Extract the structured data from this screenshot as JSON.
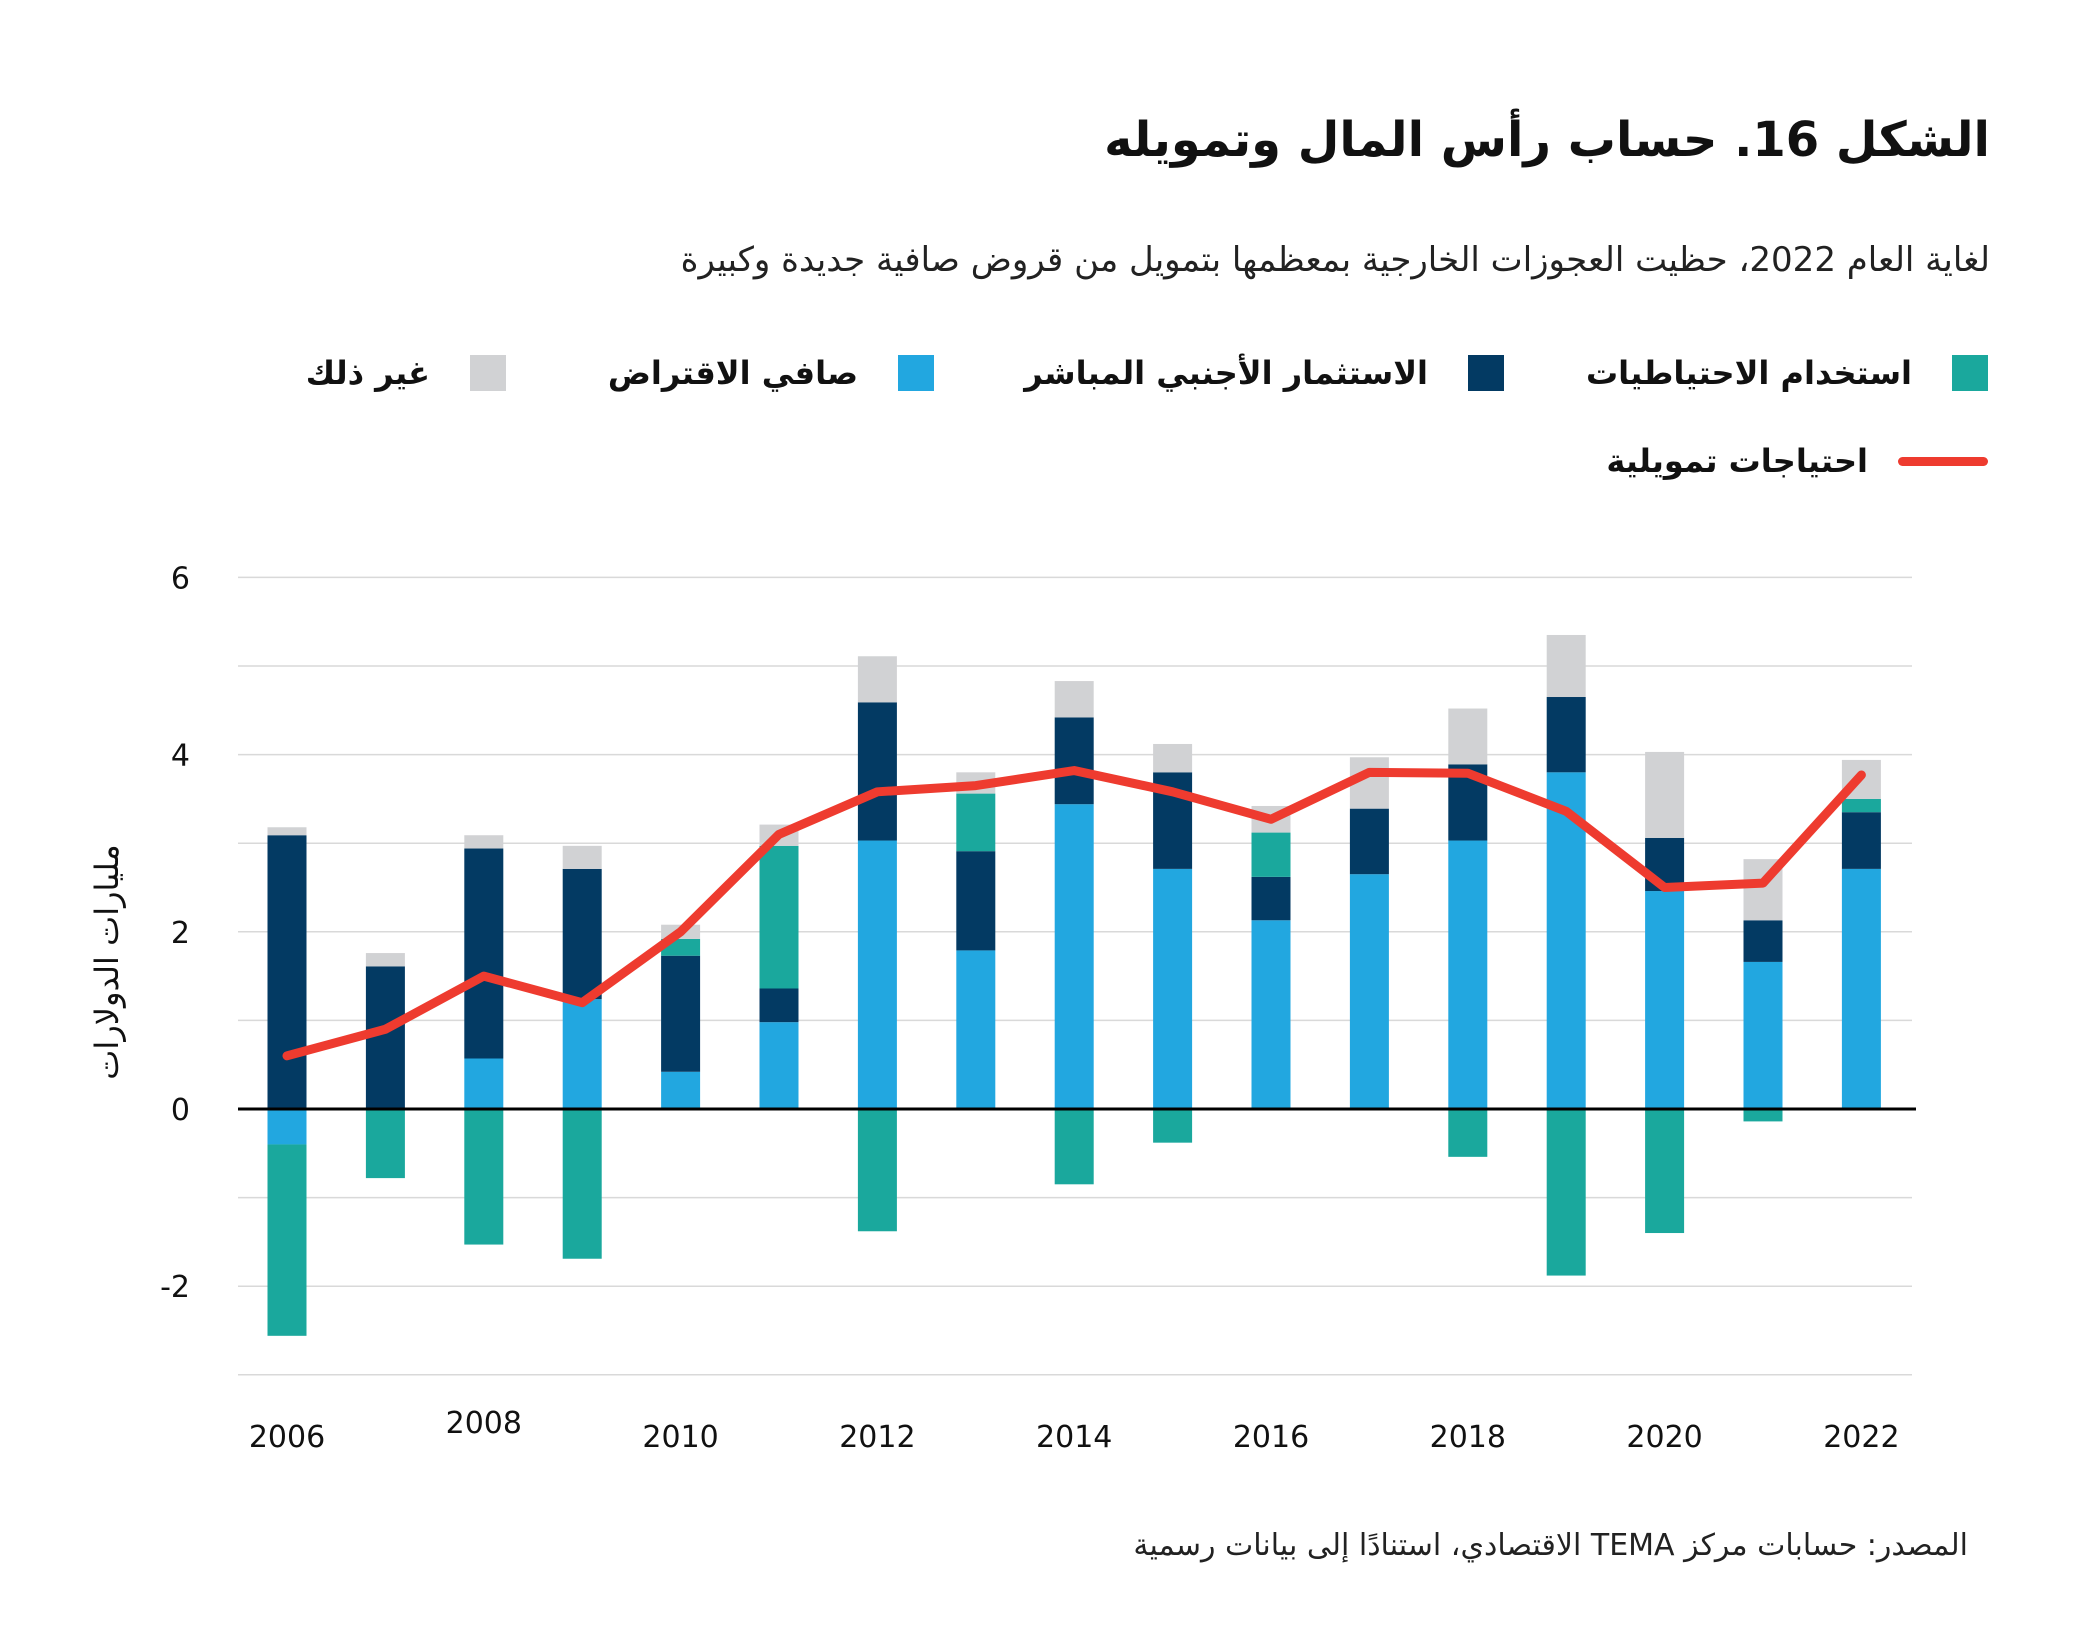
{
  "title": "الشكل 16. حساب رأس المال وتمويله",
  "subtitle": "لغاية العام 2022، حظيت العجوزات الخارجية بمعظمها بتمويل من قروض صافية جديدة وكبيرة",
  "source": "المصدر: حسابات مركز TEMA الاقتصادي، استنادًا إلى بيانات رسمية",
  "colors": {
    "reserves": "#1aa89d",
    "fdi": "#033a63",
    "borrowing": "#22a7e0",
    "other": "#d1d2d4",
    "line": "#ee3b2f"
  },
  "chart_data": {
    "type": "bar",
    "stacked": true,
    "title": "",
    "ylabel": "مليارات الدولارات",
    "xlabel": "",
    "ylim": [
      -3,
      6
    ],
    "yticks": [
      6,
      4,
      2,
      0,
      -2
    ],
    "grid": true,
    "legend_placement": "top",
    "categories": [
      "2006",
      "2007",
      "2008",
      "2009",
      "2010",
      "2011",
      "2012",
      "2013",
      "2014",
      "2015",
      "2016",
      "2017",
      "2018",
      "2019",
      "2020",
      "2021",
      "2022"
    ],
    "xtick_labels": [
      "2006",
      "2008",
      "2010",
      "2012",
      "2014",
      "2016",
      "2018",
      "2020",
      "2022"
    ],
    "series": [
      {
        "name": "صافي الاقتراض",
        "key": "borrowing",
        "values": [
          -0.4,
          0,
          0.57,
          1.24,
          0.42,
          0.98,
          3.03,
          1.79,
          3.44,
          2.71,
          2.13,
          2.65,
          3.03,
          3.8,
          2.46,
          1.66,
          2.71
        ]
      },
      {
        "name": "الاستثمار الأجنبي المباشر",
        "key": "fdi",
        "values": [
          3.09,
          1.61,
          2.37,
          1.47,
          1.31,
          0.38,
          1.56,
          1.12,
          0.98,
          1.09,
          0.49,
          0.74,
          0.86,
          0.85,
          0.6,
          0.47,
          0.64
        ]
      },
      {
        "name": "استخدام الاحتياطيات",
        "key": "reserves",
        "values": [
          -2.16,
          -0.78,
          -1.53,
          -1.69,
          0.19,
          1.61,
          -1.38,
          0.65,
          -0.85,
          -0.38,
          0.5,
          0,
          -0.54,
          -1.88,
          -1.4,
          -0.14,
          0.15
        ]
      },
      {
        "name": "غير ذلك",
        "key": "other",
        "values": [
          0.09,
          0.15,
          0.15,
          0.26,
          0.16,
          0.24,
          0.52,
          0.24,
          0.41,
          0.32,
          0.3,
          0.58,
          0.63,
          0.7,
          0.97,
          0.69,
          0.44
        ]
      }
    ],
    "line": {
      "name": "احتياجات تمويلية",
      "type": "line",
      "values": [
        0.6,
        0.9,
        1.5,
        1.2,
        2.0,
        3.1,
        3.58,
        3.65,
        3.82,
        3.58,
        3.27,
        3.8,
        3.79,
        3.36,
        2.5,
        2.55,
        3.77
      ]
    }
  }
}
